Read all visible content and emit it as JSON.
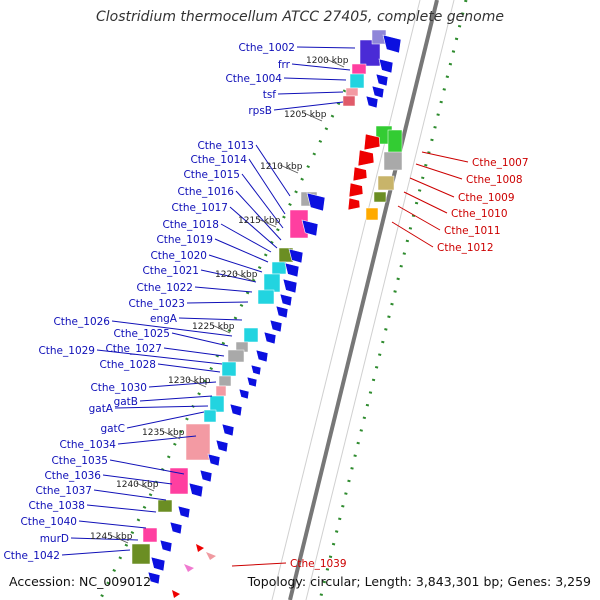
{
  "title": "Clostridium thermocellum ATCC 27405, complete genome",
  "accession": "Accession: NC_009012",
  "topology": "Topology: circular; Length: 3,843,301 bp; Genes: 3,259",
  "colors": {
    "backbone": "#777777",
    "tick_major": "#2e8b2e",
    "label_plus": "#1010b8",
    "label_minus": "#cc0000",
    "arrow": "#0b10e0",
    "arrow_minus": "#ee0000",
    "scale_text": "#222222",
    "cog": [
      "#4a2bd6",
      "#8f86d9",
      "#ff3fa0",
      "#22d4e0",
      "#f39aa3",
      "#e05b6a",
      "#f07ad0",
      "#6b8e23",
      "#a9a9a9",
      "#ffaa00",
      "#33cc33",
      "#c8b46a",
      "#ffffff"
    ]
  },
  "scale_labels": [
    "1200 kbp",
    "1205 kbp",
    "1210 kbp",
    "1215 kbp",
    "1220 kbp",
    "1225 kbp",
    "1230 kbp",
    "1235 kbp",
    "1240 kbp",
    "1245 kbp"
  ],
  "genes_plus": [
    "Cthe_1002",
    "frr",
    "Cthe_1004",
    "tsf",
    "rpsB",
    "Cthe_1013",
    "Cthe_1014",
    "Cthe_1015",
    "Cthe_1016",
    "Cthe_1017",
    "Cthe_1018",
    "Cthe_1019",
    "Cthe_1020",
    "Cthe_1021",
    "Cthe_1022",
    "Cthe_1023",
    "engA",
    "Cthe_1026",
    "Cthe_1025",
    "Cthe_1027",
    "Cthe_1029",
    "Cthe_1028",
    "Cthe_1030",
    "gatB",
    "gatA",
    "gatC",
    "Cthe_1034",
    "Cthe_1035",
    "Cthe_1036",
    "Cthe_1037",
    "Cthe_1038",
    "Cthe_1040",
    "murD",
    "Cthe_1042"
  ],
  "genes_minus": [
    "Cthe_1007",
    "Cthe_1008",
    "Cthe_1009",
    "Cthe_1010",
    "Cthe_1011",
    "Cthe_1012",
    "Cthe_1039"
  ]
}
